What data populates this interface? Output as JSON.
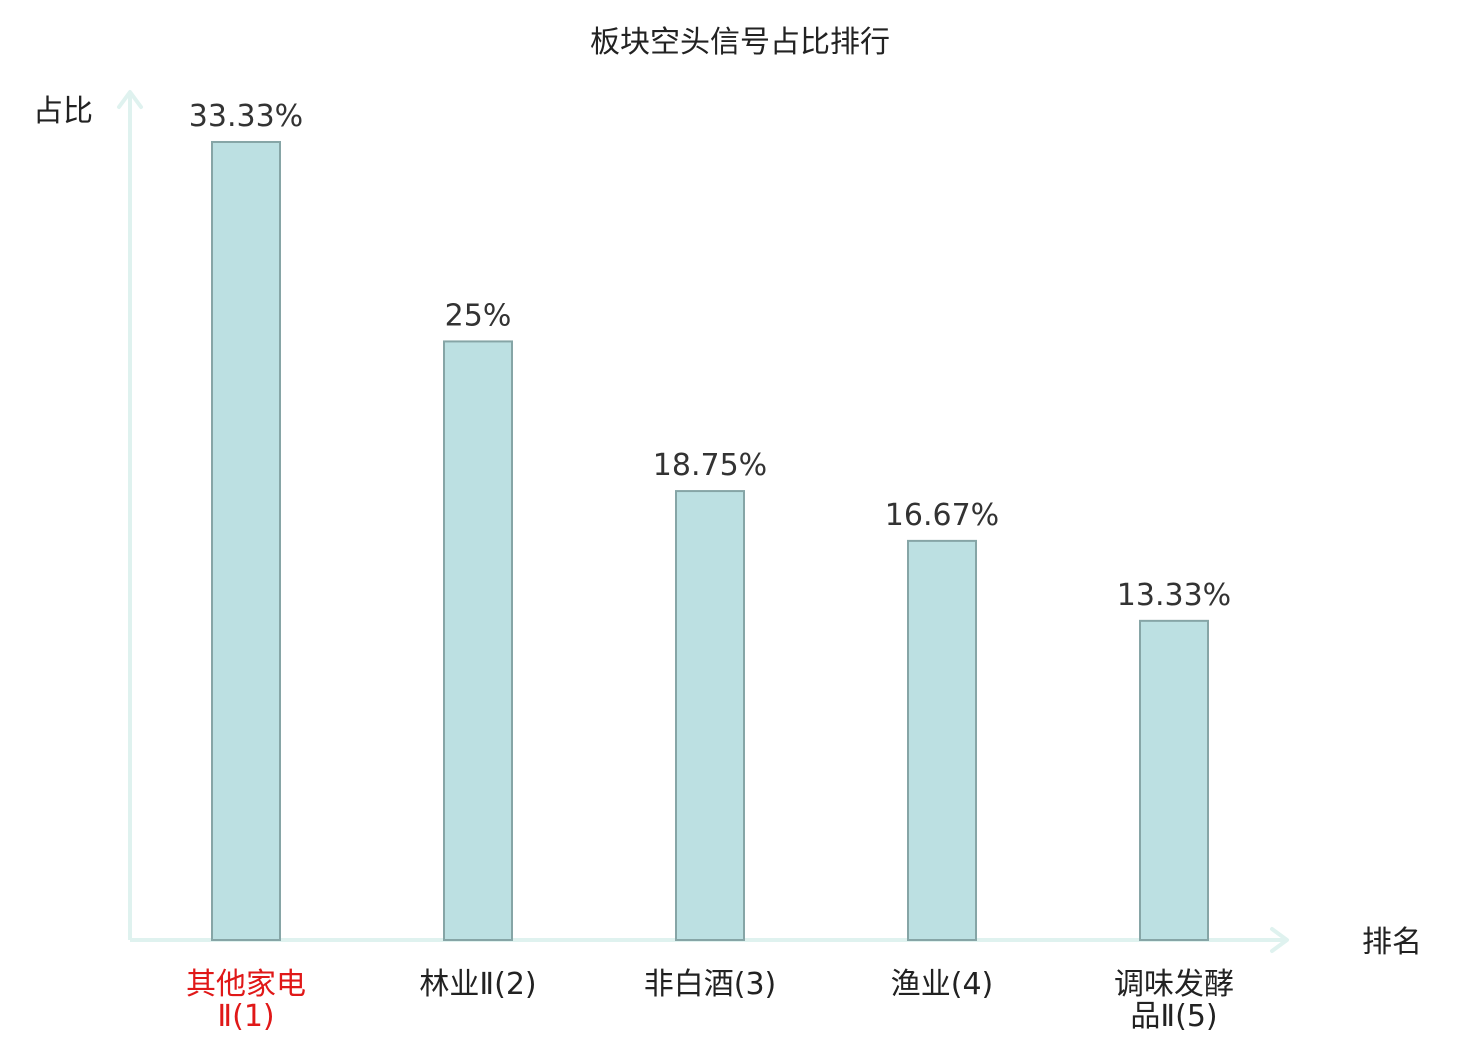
{
  "chart_data": {
    "type": "bar",
    "title": "板块空头信号占比排行",
    "xlabel": "排名",
    "ylabel": "占比",
    "categories": [
      [
        "其他家电",
        "Ⅱ(1)"
      ],
      [
        "林业Ⅱ(2)"
      ],
      [
        "非白酒(3)"
      ],
      [
        "渔业(4)"
      ],
      [
        "调味发酵",
        "品Ⅱ(5)"
      ]
    ],
    "values": [
      33.33,
      25,
      18.75,
      16.67,
      13.33
    ],
    "value_labels": [
      "33.33%",
      "25%",
      "18.75%",
      "16.67%",
      "13.33%"
    ],
    "highlight_index": 0,
    "ylim": [
      0,
      35
    ],
    "grid": false,
    "legend": "none",
    "colors": {
      "bar_fill": "#bce0e2",
      "bar_stroke": "#86a5a6",
      "axis": "#dff2ef",
      "text": "#222222",
      "value_text": "#333333",
      "highlight_text": "#e01818"
    }
  }
}
